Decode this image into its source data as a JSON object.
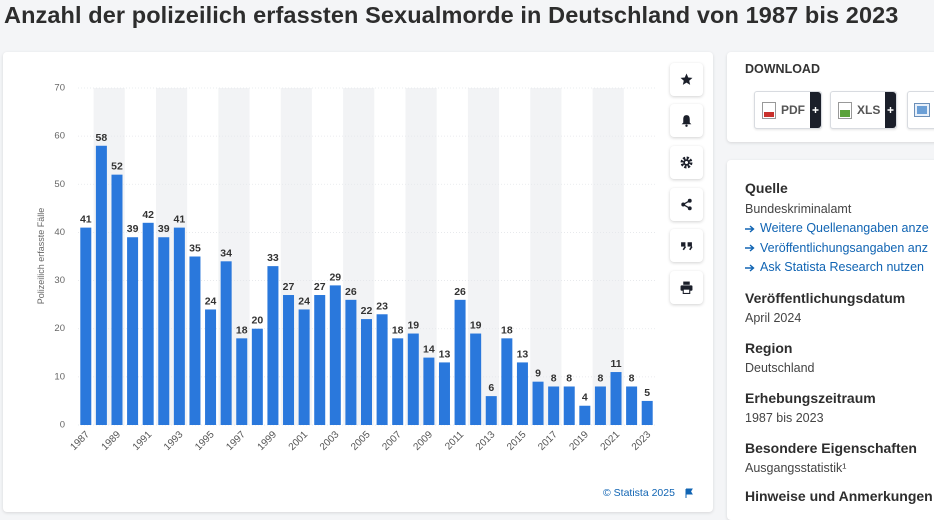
{
  "chart_data": {
    "type": "bar",
    "title": "Anzahl der polizeilich erfassten Sexualmorde in Deutschland von 1987 bis 2023",
    "y_label": "Polizeilich erfasste Fälle",
    "categories": [
      "1987",
      null,
      "1989",
      null,
      "1991",
      null,
      "1993",
      null,
      "1995",
      null,
      "1997",
      null,
      "1999",
      null,
      "2001",
      null,
      "2003",
      null,
      "2005",
      null,
      "2007",
      null,
      "2009",
      null,
      "2011",
      null,
      "2013",
      null,
      "2015",
      null,
      "2017",
      null,
      "2019",
      null,
      "2021",
      null,
      "2023"
    ],
    "values": [
      41,
      58,
      52,
      39,
      42,
      39,
      41,
      35,
      24,
      34,
      18,
      20,
      33,
      27,
      24,
      27,
      29,
      26,
      22,
      23,
      18,
      19,
      14,
      13,
      26,
      19,
      6,
      18,
      13,
      9,
      8,
      8,
      4,
      8,
      11,
      8,
      5
    ],
    "color": "#2a78dc",
    "ylim": [
      0,
      70
    ],
    "yticks": [
      0,
      10,
      20,
      30,
      40,
      50,
      60,
      70
    ],
    "source": "© Statista 2025"
  },
  "download": {
    "heading": "DOWNLOAD",
    "buttons": [
      "PDF",
      "XLS"
    ]
  },
  "details": {
    "source_heading": "Quelle",
    "source": "Bundeskriminalamt",
    "links": [
      "Weitere Quellenangaben anze",
      "Veröffentlichungsangaben anz",
      "Ask Statista Research nutzen"
    ],
    "sections": [
      {
        "heading": "Veröffentlichungsdatum",
        "value": "April 2024"
      },
      {
        "heading": "Region",
        "value": "Deutschland"
      },
      {
        "heading": "Erhebungszeitraum",
        "value": "1987 bis 2023"
      },
      {
        "heading": "Besondere Eigenschaften",
        "value": "Ausgangsstatistik¹"
      }
    ],
    "last_heading": "Hinweise und Anmerkungen"
  }
}
